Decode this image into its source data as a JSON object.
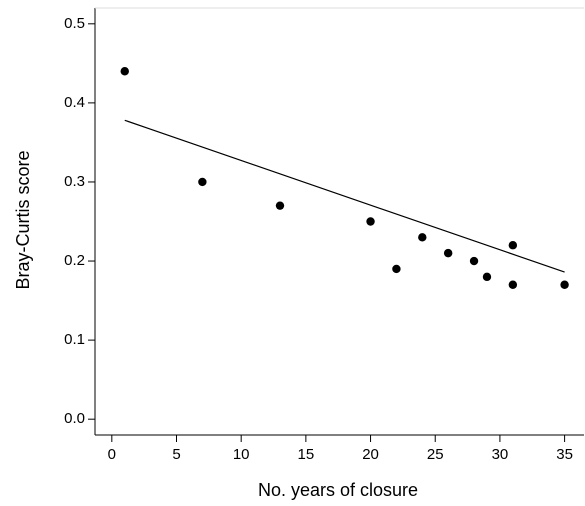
{
  "chart_data": {
    "type": "scatter",
    "x_label": "No. years of closure",
    "y_label": "Bray-Curtis score",
    "x": [
      1,
      7,
      13,
      20,
      22,
      24,
      26,
      28,
      29,
      31,
      31,
      35
    ],
    "values": [
      0.44,
      0.3,
      0.27,
      0.25,
      0.19,
      0.23,
      0.21,
      0.2,
      0.18,
      0.22,
      0.17,
      0.17
    ],
    "color": "#000000",
    "trend_line": {
      "x": [
        1,
        35
      ],
      "values": [
        0.378,
        0.186
      ],
      "color": "#000000"
    },
    "xlim": [
      -1.3,
      36.5
    ],
    "xticks": [
      0,
      5,
      10,
      15,
      20,
      25,
      30,
      35
    ],
    "ylim": [
      -0.02,
      0.52
    ],
    "yticks": [
      {
        "value": 0,
        "label": "0.0"
      },
      0.1,
      0.2,
      0.3,
      0.4,
      0.5
    ]
  }
}
